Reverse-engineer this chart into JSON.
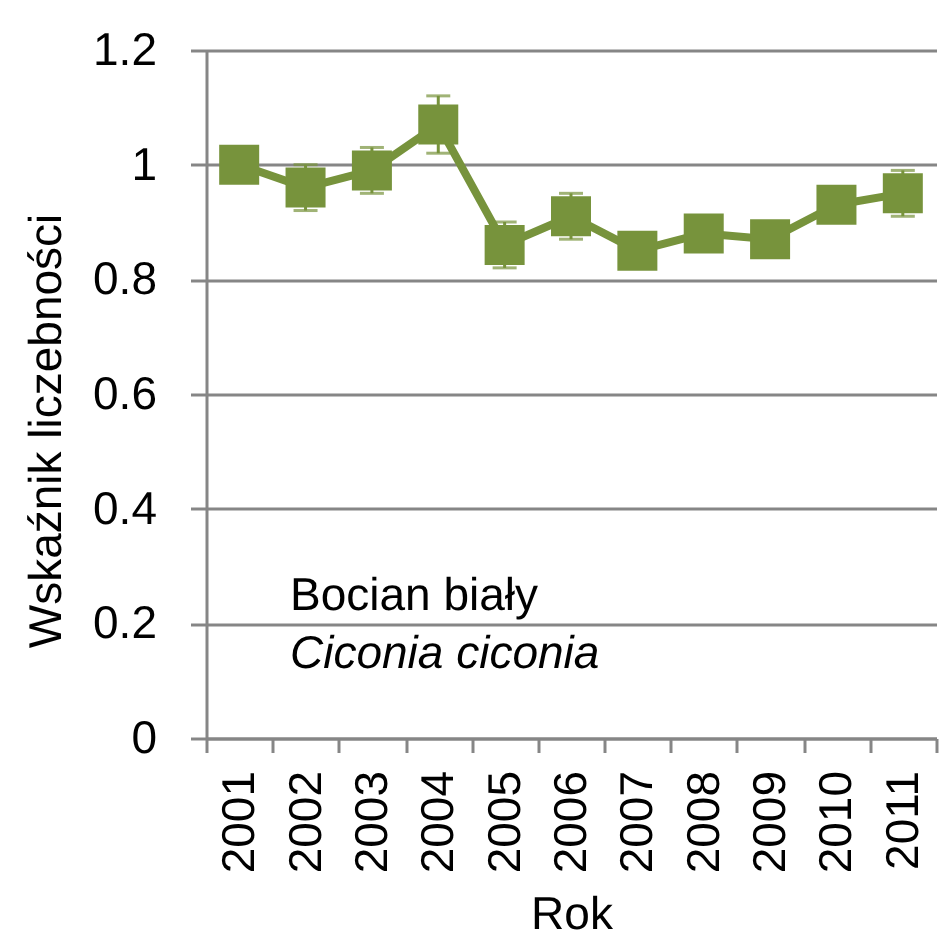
{
  "chart_data": {
    "type": "line",
    "xlabel": "Rok",
    "ylabel": "Wskaźnik liczebności",
    "categories": [
      "2001",
      "2002",
      "2003",
      "2004",
      "2005",
      "2006",
      "2007",
      "2008",
      "2009",
      "2010",
      "2011"
    ],
    "values": [
      1.0,
      0.96,
      0.99,
      1.07,
      0.86,
      0.91,
      0.85,
      0.88,
      0.87,
      0.93,
      0.95
    ],
    "errors": [
      null,
      0.04,
      0.04,
      0.05,
      0.04,
      0.04,
      null,
      null,
      null,
      null,
      0.04
    ],
    "color": "#77933c",
    "marker": "square",
    "line_style": "solid",
    "ylim": [
      0,
      1.2
    ],
    "yticks": [
      0,
      0.2,
      0.4,
      0.6,
      0.8,
      1,
      1.2
    ],
    "grid": "y",
    "annotations": [
      "Bocian biały",
      "Ciconia ciconia"
    ]
  }
}
